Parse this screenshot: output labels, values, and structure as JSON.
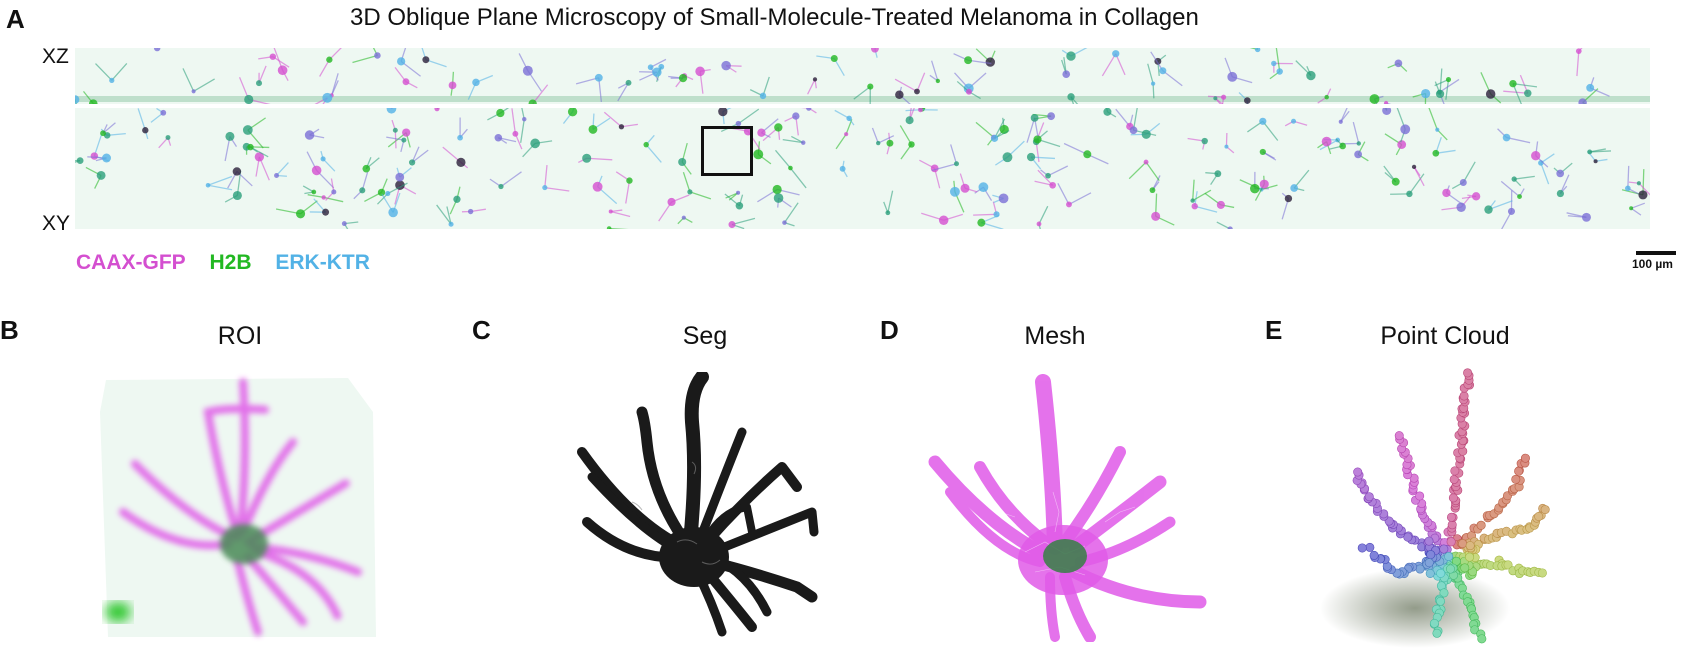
{
  "figure": {
    "title": "3D Oblique Plane Microscopy of Small-Molecule-Treated Melanoma in Collagen"
  },
  "panel_a": {
    "letter": "A",
    "views": {
      "xz": "XZ",
      "xy": "XY"
    },
    "legend": [
      {
        "label": "CAAX-GFP",
        "color": "#d44fd0"
      },
      {
        "label": "H2B",
        "color": "#22b822"
      },
      {
        "label": "ERK-KTR",
        "color": "#52b2e6"
      }
    ],
    "scale_bar": "100 µm"
  },
  "panel_b": {
    "letter": "B",
    "title": "ROI"
  },
  "panel_c": {
    "letter": "C",
    "title": "Seg"
  },
  "panel_d": {
    "letter": "D",
    "title": "Mesh"
  },
  "panel_e": {
    "letter": "E",
    "title": "Point Cloud"
  },
  "colors": {
    "membrane": "#d44fd0",
    "nucleus": "#2f8f3a",
    "erk": "#52b2e6",
    "segmentation": "#1a1a1a",
    "mesh": "#e05ae8",
    "background_tint": "#eef8f2"
  }
}
